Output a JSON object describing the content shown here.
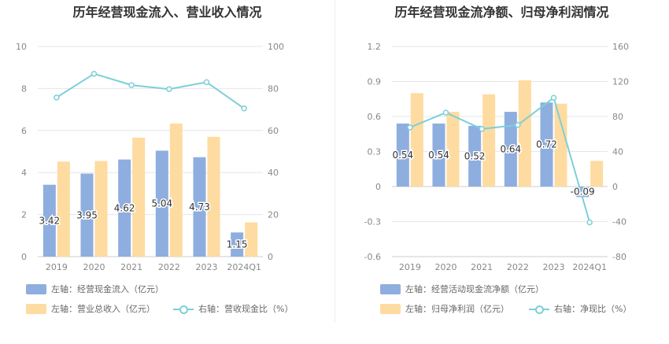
{
  "chart_data": [
    {
      "type": "bar",
      "title": "历年经营现金流入、营业收入情况",
      "categories": [
        "2019",
        "2020",
        "2021",
        "2022",
        "2023",
        "2024Q1"
      ],
      "left_axis": {
        "ylim": [
          0,
          10
        ],
        "ticks": [
          0,
          2,
          4,
          6,
          8,
          10
        ]
      },
      "right_axis": {
        "ylim": [
          0,
          100
        ],
        "ticks": [
          0,
          20,
          40,
          60,
          80,
          100
        ]
      },
      "series": [
        {
          "name": "左轴：经营现金流入（亿元）",
          "type": "bar",
          "axis": "left",
          "color": "#8eaedf",
          "values": [
            3.42,
            3.95,
            4.62,
            5.04,
            4.73,
            1.15
          ],
          "labels": [
            "3.42",
            "3.95",
            "4.62",
            "5.04",
            "4.73",
            "1.15"
          ]
        },
        {
          "name": "左轴：营业总收入（亿元）",
          "type": "bar",
          "axis": "left",
          "color": "#fedba0",
          "values": [
            4.52,
            4.55,
            5.66,
            6.33,
            5.7,
            1.63
          ]
        },
        {
          "name": "右轴：营收现金比（%）",
          "type": "line",
          "axis": "right",
          "color": "#7dcfd9",
          "values": [
            75.7,
            87.0,
            81.6,
            79.7,
            83.0,
            70.5
          ]
        }
      ],
      "legend_position": "bottom",
      "grid": true
    },
    {
      "type": "bar",
      "title": "历年经营现金流净额、归母净利润情况",
      "categories": [
        "2019",
        "2020",
        "2021",
        "2022",
        "2023",
        "2024Q1"
      ],
      "left_axis": {
        "ylim": [
          -0.6,
          1.2
        ],
        "ticks": [
          -0.6,
          -0.3,
          0,
          0.3,
          0.6,
          0.9,
          1.2
        ]
      },
      "right_axis": {
        "ylim": [
          -80,
          160
        ],
        "ticks": [
          -80,
          -40,
          0,
          40,
          80,
          120,
          160
        ]
      },
      "series": [
        {
          "name": "左轴：经营活动现金流净额（亿元）",
          "type": "bar",
          "axis": "left",
          "color": "#8eaedf",
          "values": [
            0.54,
            0.54,
            0.52,
            0.64,
            0.72,
            -0.09
          ],
          "labels": [
            "0.54",
            "0.54",
            "0.52",
            "0.64",
            "0.72",
            "-0.09"
          ]
        },
        {
          "name": "左轴：归母净利润（亿元）",
          "type": "bar",
          "axis": "left",
          "color": "#fedba0",
          "values": [
            0.8,
            0.64,
            0.79,
            0.91,
            0.71,
            0.22
          ]
        },
        {
          "name": "右轴：净现比（%）",
          "type": "line",
          "axis": "right",
          "color": "#7dcfd9",
          "values": [
            67.5,
            84.4,
            65.8,
            70.3,
            101.4,
            -40.9
          ]
        }
      ],
      "legend_position": "bottom",
      "grid": true
    }
  ]
}
